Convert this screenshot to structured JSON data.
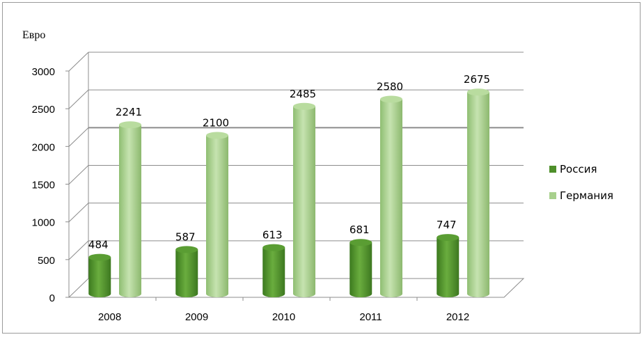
{
  "chart_data": {
    "type": "bar",
    "ylabel": "Евро",
    "xlabel": "",
    "title": "",
    "categories": [
      "2008",
      "2009",
      "2010",
      "2011",
      "2012"
    ],
    "ylim": [
      0,
      3000
    ],
    "yticks": [
      0,
      500,
      1000,
      1500,
      2000,
      2500,
      3000
    ],
    "grid": true,
    "legend_position": "right",
    "series": [
      {
        "name": "Россия",
        "values": [
          484,
          587,
          613,
          681,
          747
        ],
        "color": "#4e8f2a"
      },
      {
        "name": "Германия",
        "values": [
          2241,
          2100,
          2485,
          2580,
          2675
        ],
        "color": "#a8d08d"
      }
    ]
  }
}
